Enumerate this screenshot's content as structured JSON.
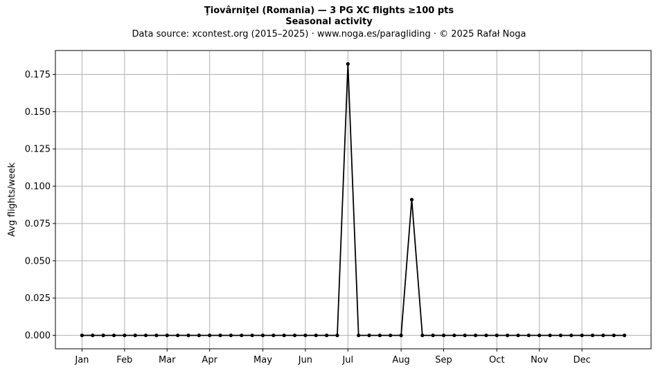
{
  "chart_data": {
    "type": "line",
    "title": "Ţiovârniţel (Romania)  —  3 PG XC flights ≥100 pts",
    "subtitle": "Seasonal activity",
    "source": "Data source: xcontest.org (2015–2025)  ·  www.noga.es/paragliding  ·  © 2025 Rafał Noga",
    "xlabel": "",
    "ylabel": "Avg flights/week",
    "xlim": [
      -2.5,
      53.5
    ],
    "ylim": [
      -0.009,
      0.191
    ],
    "yticks": [
      0.0,
      0.025,
      0.05,
      0.075,
      0.1,
      0.125,
      0.15,
      0.175
    ],
    "ytick_labels": [
      "0.000",
      "0.025",
      "0.050",
      "0.075",
      "0.100",
      "0.125",
      "0.150",
      "0.175"
    ],
    "xticks": [
      0,
      4,
      8,
      12,
      17,
      21,
      25,
      30,
      34,
      39,
      43,
      47
    ],
    "xtick_labels": [
      "Jan",
      "Feb",
      "Mar",
      "Apr",
      "May",
      "Jun",
      "Jul",
      "Aug",
      "Sep",
      "Oct",
      "Nov",
      "Dec"
    ],
    "grid": true,
    "line_color": "#000000",
    "grid_color": "#b0b0b0",
    "series": [
      {
        "x": [
          0,
          1,
          2,
          3,
          4,
          5,
          6,
          7,
          8,
          9,
          10,
          11,
          12,
          13,
          14,
          15,
          16,
          17,
          18,
          19,
          20,
          21,
          22,
          23,
          24,
          25,
          26,
          27,
          28,
          29,
          30,
          31,
          32,
          33,
          34,
          35,
          36,
          37,
          38,
          39,
          40,
          41,
          42,
          43,
          44,
          45,
          46,
          47,
          48,
          49,
          50,
          51
        ],
        "values": [
          0,
          0,
          0,
          0,
          0,
          0,
          0,
          0,
          0,
          0,
          0,
          0,
          0,
          0,
          0,
          0,
          0,
          0,
          0,
          0,
          0,
          0,
          0,
          0,
          0,
          0.182,
          0,
          0,
          0,
          0,
          0,
          0.091,
          0,
          0,
          0,
          0,
          0,
          0,
          0,
          0,
          0,
          0,
          0,
          0,
          0,
          0,
          0,
          0,
          0,
          0,
          0,
          0
        ]
      }
    ]
  }
}
